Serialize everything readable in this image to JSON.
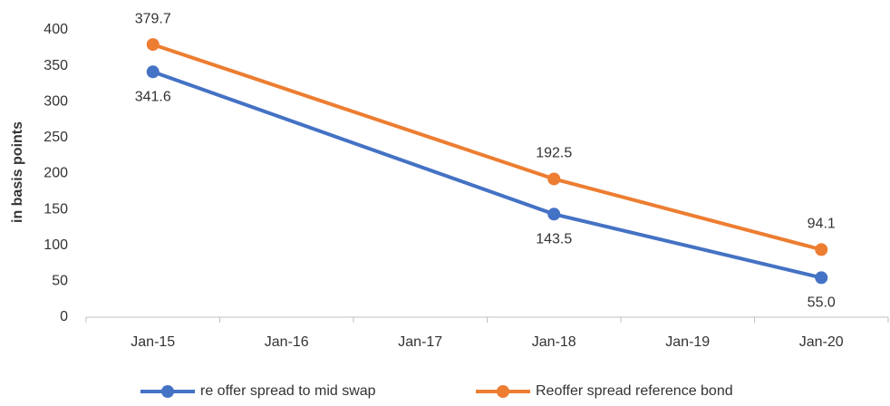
{
  "chart_data": {
    "type": "line",
    "y_label": "in basis points",
    "xticks": [
      "Jan-15",
      "Jan-16",
      "Jan-17",
      "Jan-18",
      "Jan-19",
      "Jan-20"
    ],
    "x": [
      "Jan-15",
      "Jan-18",
      "Jan-20"
    ],
    "series": [
      {
        "name": "re offer spread to mid swap",
        "color": "#4472c4",
        "values": [
          341.6,
          143.5,
          55.0
        ],
        "value_labels": [
          "341.6",
          "143.5",
          "55.0"
        ]
      },
      {
        "name": "Reoffer spread reference bond",
        "color": "#ed7d31",
        "values": [
          379.7,
          192.5,
          94.1
        ]
      }
    ],
    "ylim": [
      0,
      400
    ],
    "yticks": [
      0,
      50,
      100,
      150,
      200,
      250,
      300,
      350,
      400
    ],
    "grid": false,
    "legend": "bottom"
  }
}
